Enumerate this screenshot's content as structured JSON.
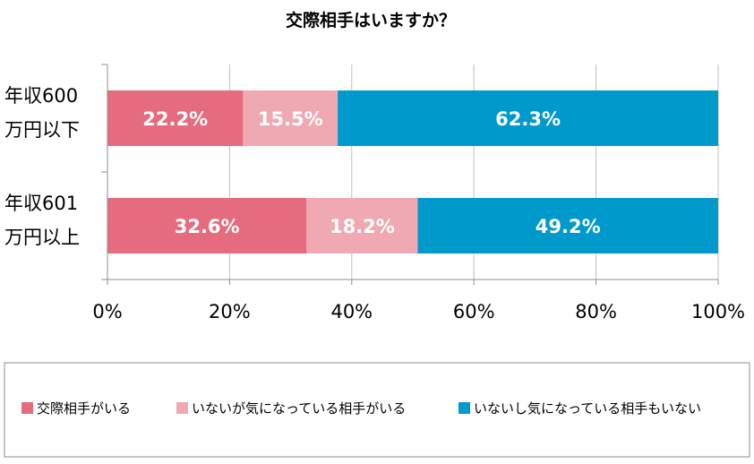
{
  "chart_data": {
    "type": "bar",
    "orientation": "horizontal",
    "stacked": true,
    "title": "交際相手はいますか？",
    "categories": [
      [
        "年収600",
        "万円以下"
      ],
      [
        "年収601",
        "万円以上"
      ]
    ],
    "series": [
      {
        "name": "交際相手がいる",
        "color": "#e56b7e",
        "values": [
          22.2,
          32.6
        ],
        "labels": [
          "22.2%",
          "32.6%"
        ]
      },
      {
        "name": "いないが気になっている相手がいる",
        "color": "#f0a8b2",
        "values": [
          15.5,
          18.2
        ],
        "labels": [
          "15.5%",
          "18.2%"
        ]
      },
      {
        "name": "いないし気になっている相手もいない",
        "color": "#0099cc",
        "values": [
          62.3,
          49.2
        ],
        "labels": [
          "62.3%",
          "49.2%"
        ]
      }
    ],
    "xlim": [
      0,
      100
    ],
    "x_ticks": [
      "0%",
      "20%",
      "40%",
      "60%",
      "80%",
      "100%"
    ],
    "xlabel": "",
    "ylabel": "",
    "grid": "vertical",
    "legend": "bottom"
  }
}
